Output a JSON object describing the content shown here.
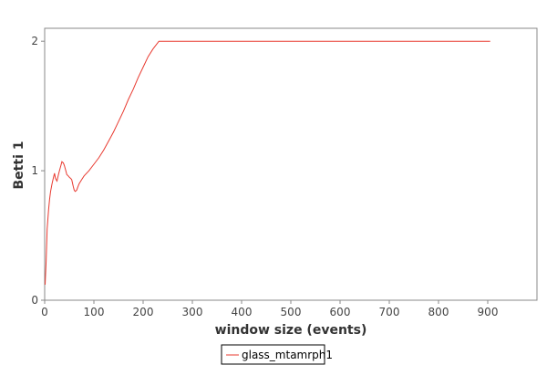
{
  "chart_data": {
    "type": "line",
    "xlabel": "window size (events)",
    "ylabel": "Betti 1",
    "xlim": [
      0,
      1000
    ],
    "ylim": [
      0,
      2.1
    ],
    "x_ticks": [
      0,
      100,
      200,
      300,
      400,
      500,
      600,
      700,
      800,
      900
    ],
    "y_ticks": [
      0,
      1,
      2
    ],
    "grid": false,
    "legend_position": "bottom-center",
    "series": [
      {
        "name": "glass_mtamrph1",
        "color": "#e8392f",
        "x": [
          1,
          3,
          5,
          8,
          10,
          12,
          15,
          18,
          20,
          22,
          25,
          28,
          30,
          33,
          35,
          38,
          40,
          43,
          45,
          48,
          50,
          53,
          55,
          58,
          60,
          62,
          65,
          68,
          70,
          75,
          80,
          90,
          100,
          110,
          120,
          130,
          140,
          150,
          160,
          170,
          180,
          190,
          200,
          210,
          220,
          232,
          300,
          400,
          500,
          600,
          700,
          800,
          905
        ],
        "y": [
          0.12,
          0.3,
          0.55,
          0.7,
          0.78,
          0.84,
          0.9,
          0.95,
          0.98,
          0.94,
          0.92,
          0.97,
          1.0,
          1.04,
          1.07,
          1.06,
          1.04,
          1.0,
          0.97,
          0.96,
          0.95,
          0.94,
          0.93,
          0.88,
          0.85,
          0.84,
          0.85,
          0.88,
          0.9,
          0.93,
          0.96,
          1.0,
          1.05,
          1.1,
          1.16,
          1.23,
          1.3,
          1.38,
          1.46,
          1.55,
          1.63,
          1.72,
          1.8,
          1.88,
          1.94,
          2.0,
          2.0,
          2.0,
          2.0,
          2.0,
          2.0,
          2.0,
          2.0
        ]
      }
    ]
  }
}
